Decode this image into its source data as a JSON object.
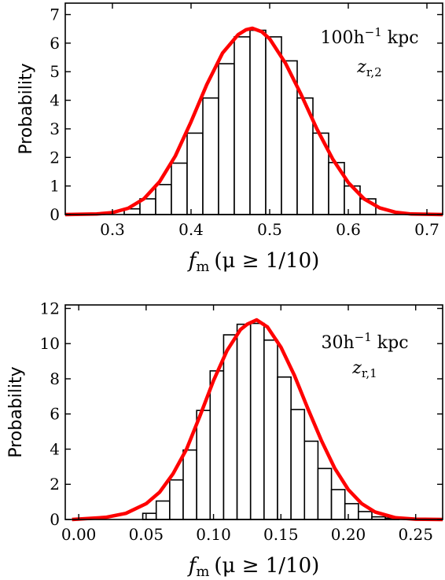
{
  "chart_data": [
    {
      "type": "bar",
      "panel": "top",
      "xlabel": "f_m (μ ≥ 1/10)",
      "xlabel_parts": {
        "f": "f",
        "m": "m",
        "rest": "(μ ≥ 1/10)"
      },
      "ylabel": "Probability",
      "xlim": [
        0.24,
        0.72
      ],
      "ylim": [
        0,
        7.4
      ],
      "xticks": [
        "0.3",
        "0.4",
        "0.5",
        "0.6",
        "0.7"
      ],
      "yticks": [
        "0",
        "1",
        "2",
        "3",
        "4",
        "5",
        "6",
        "7"
      ],
      "annotation": {
        "main": "100h",
        "exp": "−1",
        "unit": " kpc",
        "sub_z": "z",
        "sub_r": "r,2"
      },
      "bin_edges": [
        0.315,
        0.335,
        0.355,
        0.375,
        0.395,
        0.415,
        0.435,
        0.455,
        0.475,
        0.495,
        0.515,
        0.535,
        0.555,
        0.575,
        0.595,
        0.615,
        0.635
      ],
      "values": [
        0.2,
        0.55,
        1.05,
        1.8,
        2.85,
        4.08,
        5.28,
        6.22,
        6.45,
        6.22,
        5.38,
        4.08,
        2.85,
        1.82,
        1.0,
        0.55,
        0.22
      ],
      "curve": {
        "color": "#ff0000",
        "x": [
          0.24,
          0.28,
          0.3,
          0.32,
          0.34,
          0.36,
          0.38,
          0.4,
          0.42,
          0.44,
          0.46,
          0.47,
          0.478,
          0.49,
          0.5,
          0.52,
          0.54,
          0.56,
          0.58,
          0.6,
          0.62,
          0.64,
          0.66,
          0.68,
          0.72
        ],
        "y": [
          0.0,
          0.02,
          0.07,
          0.22,
          0.55,
          1.15,
          2.05,
          3.25,
          4.55,
          5.65,
          6.3,
          6.47,
          6.52,
          6.4,
          6.15,
          5.3,
          4.2,
          3.0,
          1.95,
          1.12,
          0.55,
          0.23,
          0.08,
          0.02,
          0.0
        ]
      }
    },
    {
      "type": "bar",
      "panel": "bottom",
      "xlabel": "f_m (μ ≥ 1/10)",
      "xlabel_parts": {
        "f": "f",
        "m": "m",
        "rest": "(μ ≥ 1/10)"
      },
      "ylabel": "Probability",
      "xlim": [
        -0.01,
        0.27
      ],
      "ylim": [
        0,
        12.2
      ],
      "xticks": [
        "0.00",
        "0.05",
        "0.10",
        "0.15",
        "0.20",
        "0.25"
      ],
      "yticks": [
        "0",
        "2",
        "4",
        "6",
        "8",
        "10",
        "12"
      ],
      "annotation": {
        "main": "30h",
        "exp": "−1",
        "unit": " kpc",
        "sub_z": "z",
        "sub_r": "r,1"
      },
      "bin_edges": [
        0.0475,
        0.0575,
        0.0675,
        0.0775,
        0.0875,
        0.0975,
        0.1075,
        0.1175,
        0.1275,
        0.1375,
        0.1475,
        0.1575,
        0.1675,
        0.1775,
        0.1875,
        0.1975,
        0.2075,
        0.2175,
        0.2275,
        0.2375
      ],
      "values": [
        0.35,
        1.05,
        2.25,
        3.95,
        6.2,
        8.45,
        10.5,
        11.1,
        11.15,
        10.2,
        8.1,
        6.25,
        4.45,
        2.9,
        1.7,
        0.9,
        0.45,
        0.15,
        0.08
      ],
      "curve": {
        "color": "#ff0000",
        "x": [
          -0.005,
          0.02,
          0.035,
          0.05,
          0.06,
          0.07,
          0.08,
          0.09,
          0.1,
          0.11,
          0.12,
          0.125,
          0.132,
          0.14,
          0.15,
          0.16,
          0.17,
          0.18,
          0.19,
          0.2,
          0.21,
          0.22,
          0.235,
          0.25,
          0.27
        ],
        "y": [
          0.0,
          0.12,
          0.35,
          0.9,
          1.55,
          2.6,
          4.0,
          5.9,
          7.9,
          9.6,
          10.8,
          11.1,
          11.35,
          10.95,
          9.8,
          8.2,
          6.3,
          4.5,
          2.9,
          1.7,
          0.9,
          0.42,
          0.1,
          0.02,
          0.0
        ]
      }
    }
  ]
}
